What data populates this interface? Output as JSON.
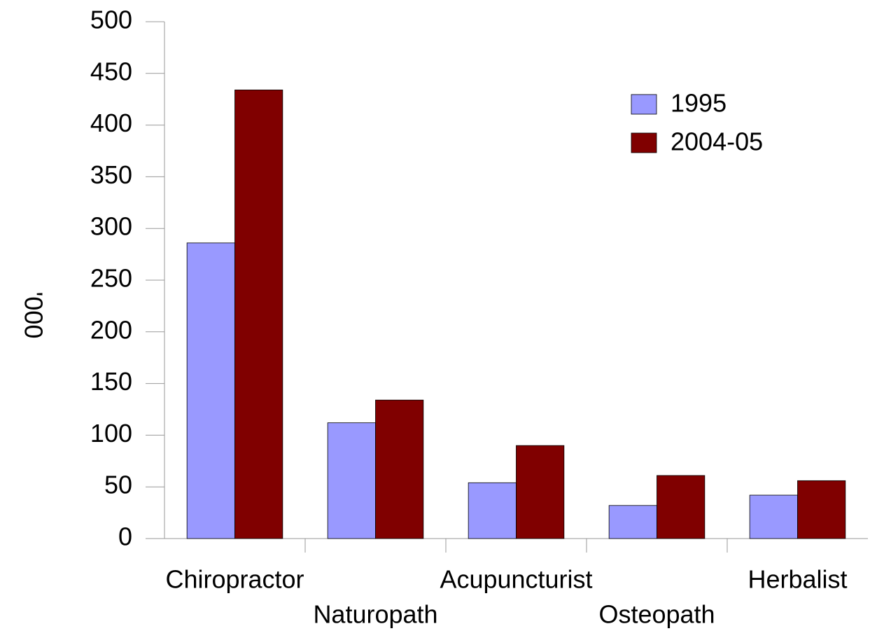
{
  "chart_data": {
    "type": "bar",
    "y_label": "'000",
    "categories": [
      "Chiropractor",
      "Naturopath",
      "Acupuncturist",
      "Osteopath",
      "Herbalist"
    ],
    "series": [
      {
        "name": "1995",
        "color": "#9999ff",
        "values": [
          286,
          112,
          54,
          32,
          42
        ]
      },
      {
        "name": "2004-05",
        "color": "#800000",
        "values": [
          434,
          134,
          90,
          61,
          56
        ]
      }
    ],
    "ylim": [
      0,
      500
    ],
    "yticks": [
      0,
      50,
      100,
      150,
      200,
      250,
      300,
      350,
      400,
      450,
      500
    ],
    "legend": "upper right"
  }
}
